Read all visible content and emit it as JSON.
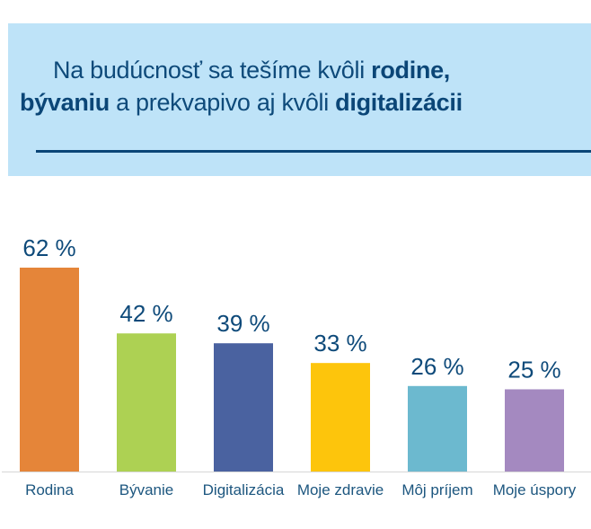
{
  "header": {
    "line1_prefix": "Na budúcnosť sa tešíme kvôli ",
    "line1_bold": "rodine,",
    "line2_bold1": "bývaniu",
    "line2_mid": " a prekvapivo aj kvôli ",
    "line2_bold2": "digitalizácii"
  },
  "colors": {
    "header_bg": "#bee3f8",
    "title": "#0e4a7a",
    "rule": "#0b4677"
  },
  "chart_data": {
    "type": "bar",
    "title": "Na budúcnosť sa tešíme kvôli rodine, bývaniu a prekvapivo aj kvôli digitalizácii",
    "xlabel": "",
    "ylabel": "",
    "ylim": [
      0,
      62
    ],
    "grid": false,
    "legend": "none",
    "categories": [
      "Rodina",
      "Bývanie",
      "Digitalizácia",
      "Moje zdravie",
      "Môj príjem",
      "Moje úspory"
    ],
    "values": [
      62,
      42,
      39,
      33,
      26,
      25
    ],
    "value_labels": [
      "62 %",
      "42 %",
      "39 %",
      "33 %",
      "26 %",
      "25 %"
    ],
    "bar_colors": [
      "#e58539",
      "#add153",
      "#4a62a0",
      "#fdc50c",
      "#6cb9cf",
      "#a489c0"
    ]
  }
}
